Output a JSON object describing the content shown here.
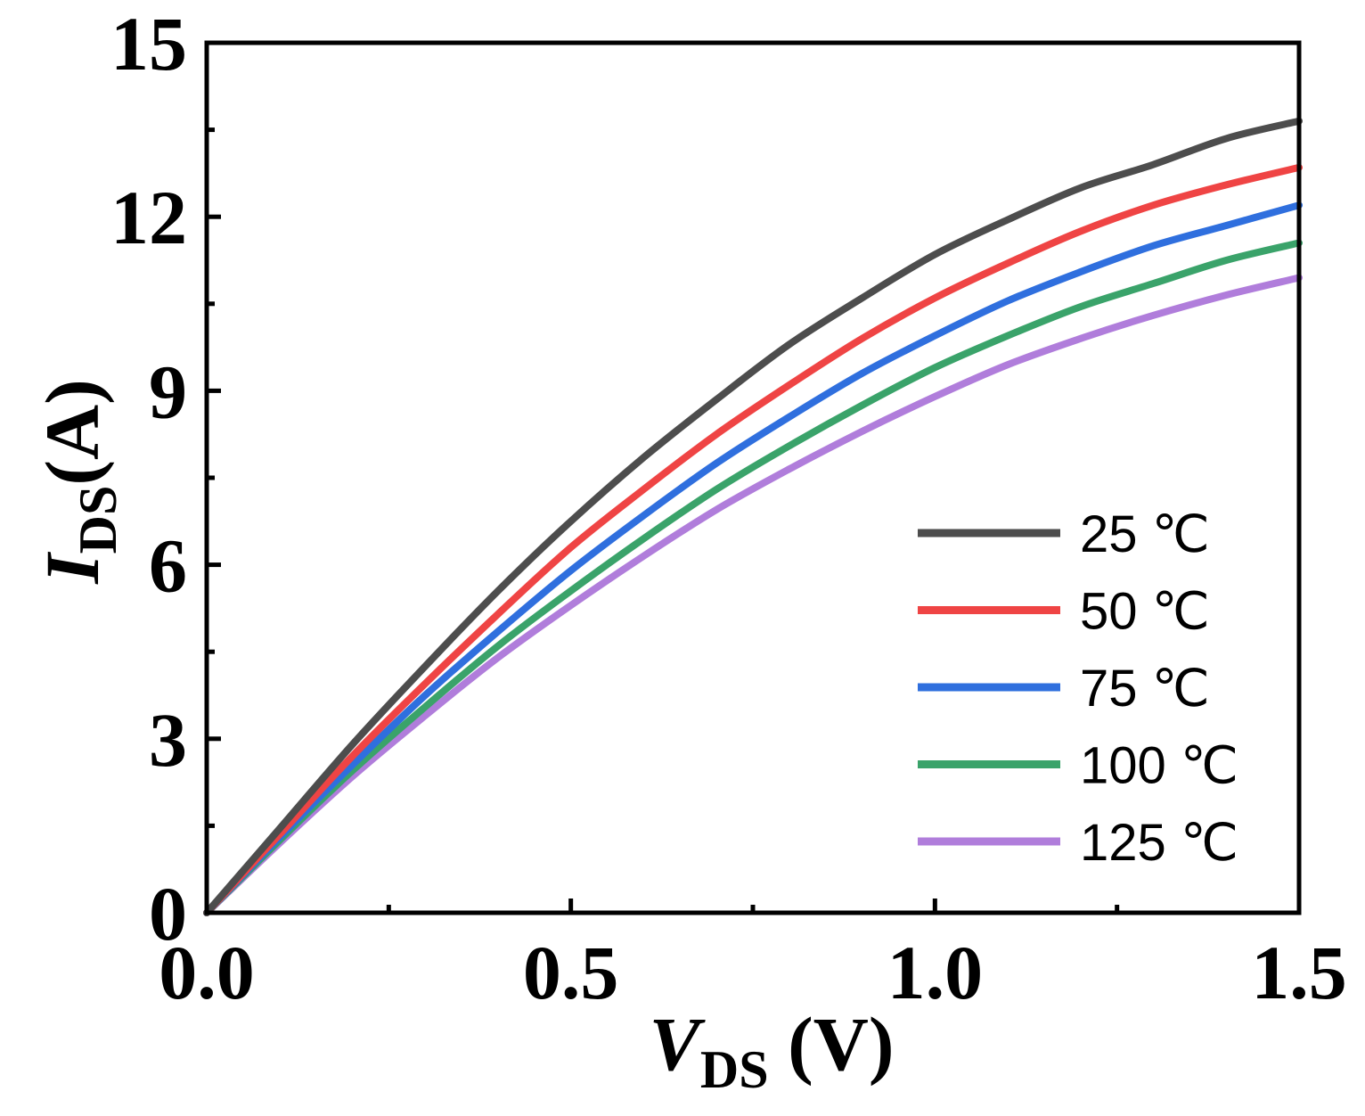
{
  "chart_data": {
    "type": "line",
    "xlabel": {
      "main": "V",
      "sub": "DS",
      "unit": " (V)"
    },
    "ylabel": {
      "main": "I",
      "sub": "DS",
      "unit": "(A)"
    },
    "xlim": [
      0,
      1.5
    ],
    "ylim": [
      0,
      15
    ],
    "xticks": [
      0.0,
      0.5,
      1.0,
      1.5
    ],
    "xtick_labels": [
      "0.0",
      "0.5",
      "1.0",
      "1.5"
    ],
    "yticks": [
      0,
      3,
      6,
      9,
      12,
      15
    ],
    "ytick_labels": [
      "0",
      "3",
      "6",
      "9",
      "12",
      "15"
    ],
    "grid": false,
    "legend_position": "lower-right",
    "series": [
      {
        "name": "25 ℃",
        "color": "#4d4d4d",
        "x": [
          0,
          0.1,
          0.2,
          0.3,
          0.4,
          0.5,
          0.6,
          0.7,
          0.8,
          0.9,
          1.0,
          1.1,
          1.2,
          1.3,
          1.4,
          1.5
        ],
        "y": [
          0,
          1.45,
          2.9,
          4.25,
          5.55,
          6.75,
          7.85,
          8.85,
          9.8,
          10.6,
          11.35,
          11.95,
          12.5,
          12.9,
          13.35,
          13.65
        ]
      },
      {
        "name": "50 ℃",
        "color": "#ef4444",
        "x": [
          0,
          0.1,
          0.2,
          0.3,
          0.4,
          0.5,
          0.6,
          0.7,
          0.8,
          0.9,
          1.0,
          1.1,
          1.2,
          1.3,
          1.4,
          1.5
        ],
        "y": [
          0,
          1.35,
          2.7,
          3.95,
          5.15,
          6.3,
          7.3,
          8.25,
          9.1,
          9.9,
          10.6,
          11.2,
          11.75,
          12.2,
          12.55,
          12.85
        ]
      },
      {
        "name": "75 ℃",
        "color": "#2f6fde",
        "x": [
          0,
          0.1,
          0.2,
          0.3,
          0.4,
          0.5,
          0.6,
          0.7,
          0.8,
          0.9,
          1.0,
          1.1,
          1.2,
          1.3,
          1.4,
          1.5
        ],
        "y": [
          0,
          1.3,
          2.55,
          3.75,
          4.85,
          5.9,
          6.85,
          7.75,
          8.55,
          9.3,
          9.95,
          10.55,
          11.05,
          11.5,
          11.85,
          12.2
        ]
      },
      {
        "name": "100 ℃",
        "color": "#3aa36a",
        "x": [
          0,
          0.1,
          0.2,
          0.3,
          0.4,
          0.5,
          0.6,
          0.7,
          0.8,
          0.9,
          1.0,
          1.1,
          1.2,
          1.3,
          1.4,
          1.5
        ],
        "y": [
          0,
          1.25,
          2.45,
          3.55,
          4.6,
          5.55,
          6.45,
          7.3,
          8.05,
          8.75,
          9.4,
          9.95,
          10.45,
          10.85,
          11.25,
          11.55
        ]
      },
      {
        "name": "125 ℃",
        "color": "#b07ddb",
        "x": [
          0,
          0.1,
          0.2,
          0.3,
          0.4,
          0.5,
          0.6,
          0.7,
          0.8,
          0.9,
          1.0,
          1.1,
          1.2,
          1.3,
          1.4,
          1.5
        ],
        "y": [
          0,
          1.2,
          2.35,
          3.4,
          4.4,
          5.3,
          6.15,
          6.95,
          7.65,
          8.3,
          8.9,
          9.45,
          9.9,
          10.3,
          10.65,
          10.95
        ]
      }
    ]
  }
}
